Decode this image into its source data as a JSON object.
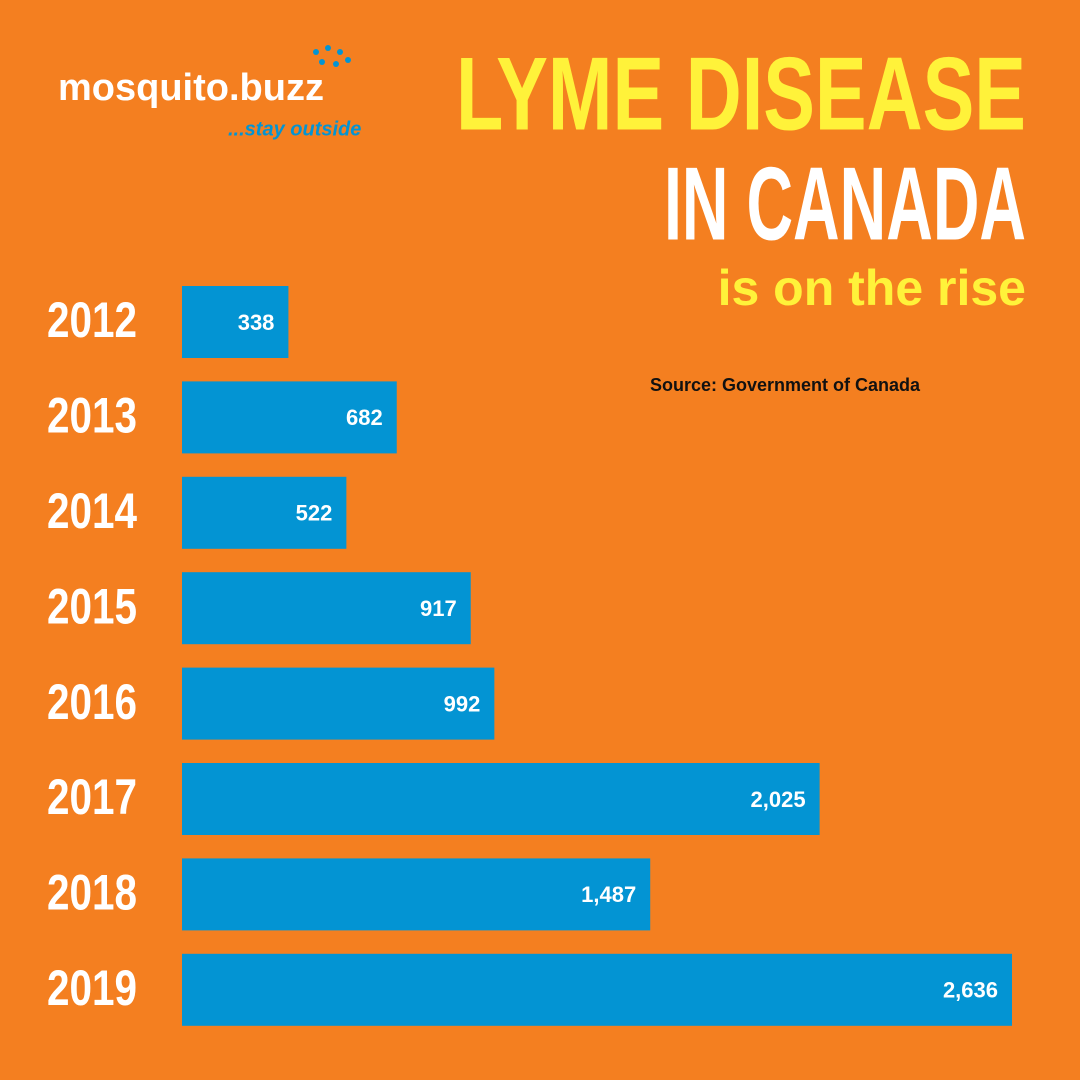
{
  "logo": {
    "name": "mosquito.buzz",
    "tagline": "...stay outside"
  },
  "chart_data": {
    "type": "bar",
    "orientation": "horizontal",
    "title": [
      "LYME DISEASE",
      "IN CANADA"
    ],
    "subtitle": "is on the rise",
    "source": "Source: Government of Canada",
    "categories": [
      "2012",
      "2013",
      "2014",
      "2015",
      "2016",
      "2017",
      "2018",
      "2019"
    ],
    "values": [
      338,
      682,
      522,
      917,
      992,
      2025,
      1487,
      2636
    ],
    "value_labels": [
      "338",
      "682",
      "522",
      "917",
      "992",
      "2,025",
      "1,487",
      "2,636"
    ],
    "color": "#0394d3"
  }
}
